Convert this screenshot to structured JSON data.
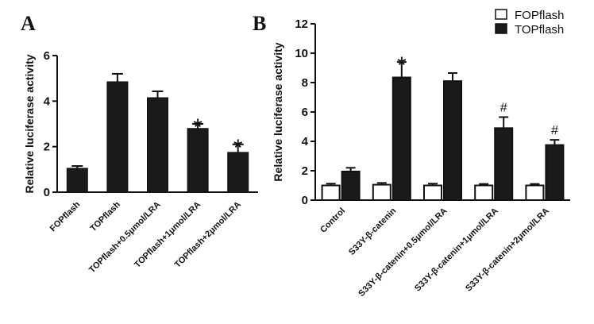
{
  "chart_data": [
    {
      "panel": "A",
      "type": "bar",
      "ylabel": "Relative luciferase activity",
      "xlabel": "",
      "ylim": [
        0,
        6
      ],
      "yticks": [
        0,
        2,
        4,
        6
      ],
      "grid": false,
      "categories": [
        "FOPflash",
        "TOPflash",
        "TOPflash+0.5μmol/LRA",
        "TOPflash+1μmol/LRA",
        "TOPflash+2μmol/LRA"
      ],
      "values": [
        1.05,
        4.85,
        4.15,
        2.8,
        1.75
      ],
      "errors": [
        0.1,
        0.35,
        0.28,
        0.2,
        0.35
      ],
      "annotations": [
        "",
        "",
        "",
        "*",
        "*"
      ],
      "bar_color": "#1a1a1a"
    },
    {
      "panel": "B",
      "type": "bar",
      "ylabel": "Relative luciferase activity",
      "xlabel": "",
      "ylim": [
        0,
        12
      ],
      "yticks": [
        0,
        2,
        4,
        6,
        8,
        10,
        12
      ],
      "grid": false,
      "legend_position": "top-right",
      "categories": [
        "Control",
        "S33Y-β-catenin",
        "S33Y-β-catenin+0.5μmol/LRA",
        "S33Y-β-catenin+1μmol/LRA",
        "S33Y-β-catenin+2μmol/LRA"
      ],
      "series": [
        {
          "name": "FOPflash",
          "values": [
            1.0,
            1.05,
            1.0,
            1.0,
            1.0
          ],
          "errors": [
            0.12,
            0.12,
            0.12,
            0.1,
            0.1
          ],
          "color": "#ffffff"
        },
        {
          "name": "TOPflash",
          "values": [
            1.95,
            8.35,
            8.1,
            4.9,
            3.75
          ],
          "errors": [
            0.25,
            1.05,
            0.55,
            0.75,
            0.35
          ],
          "color": "#1a1a1a"
        }
      ],
      "annotations": [
        "",
        "*",
        "",
        "#",
        "#"
      ]
    }
  ]
}
